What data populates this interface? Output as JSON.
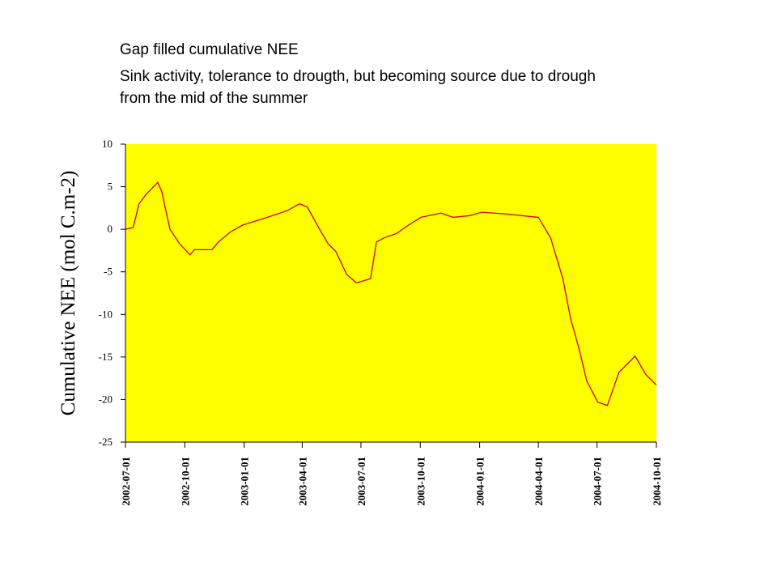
{
  "chart_data": {
    "type": "line",
    "title_lines": [
      "Gap filled cumulative NEE",
      "Sink activity, tolerance to drougth, but becoming source due to drough",
      "from the mid of the summer"
    ],
    "ylabel": "Cumulative NEE (mol C.m-2)",
    "x": [
      "2002-07-01",
      "2002-07-13",
      "2002-07-22",
      "2002-08-01",
      "2002-08-20",
      "2002-08-26",
      "2002-09-08",
      "2002-09-23",
      "2002-10-09",
      "2002-10-16",
      "2002-11-12",
      "2002-11-22",
      "2002-12-11",
      "2002-12-30",
      "2003-02-06",
      "2003-03-09",
      "2003-03-28",
      "2003-04-09",
      "2003-04-28",
      "2003-05-11",
      "2003-05-23",
      "2003-06-09",
      "2003-06-24",
      "2003-07-16",
      "2003-07-25",
      "2003-08-06",
      "2003-08-25",
      "2003-09-13",
      "2003-10-02",
      "2003-11-02",
      "2003-11-21",
      "2003-12-16",
      "2004-01-04",
      "2004-02-11",
      "2004-03-07",
      "2004-04-01",
      "2004-04-20",
      "2004-05-09",
      "2004-05-21",
      "2004-06-03",
      "2004-06-15",
      "2004-07-02",
      "2004-07-17",
      "2004-08-04",
      "2004-08-29",
      "2004-09-15",
      "2004-10-01"
    ],
    "series": [
      {
        "name": "Cumulative NEE",
        "color": "#d40000",
        "values": [
          0,
          0.2,
          3.0,
          4.0,
          5.5,
          4.5,
          0,
          -1.7,
          -3.0,
          -2.4,
          -2.4,
          -1.5,
          -0.3,
          0.5,
          1.4,
          2.2,
          3.0,
          2.6,
          0,
          -1.7,
          -2.6,
          -5.3,
          -6.3,
          -5.8,
          -1.5,
          -1.0,
          -0.5,
          0.5,
          1.4,
          1.9,
          1.4,
          1.6,
          2.0,
          1.8,
          1.6,
          1.4,
          -1.0,
          -5.8,
          -10.5,
          -14,
          -17.8,
          -20.3,
          -20.7,
          -16.8,
          -14.9,
          -17.1,
          -18.3
        ]
      }
    ],
    "xlim": [
      "2002-07-01",
      "2004-10-01"
    ],
    "xticks": [
      "2002-07-01",
      "2002-10-01",
      "2003-01-01",
      "2003-04-01",
      "2003-07-01",
      "2003-10-01",
      "2004-01-01",
      "2004-04-01",
      "2004-07-01",
      "2004-10-01"
    ],
    "ylim": [
      -25,
      10
    ],
    "yticks": [
      10,
      5,
      0,
      -5,
      -10,
      -15,
      -20,
      -25
    ],
    "plot_background": "#ffff00",
    "grid": false
  }
}
